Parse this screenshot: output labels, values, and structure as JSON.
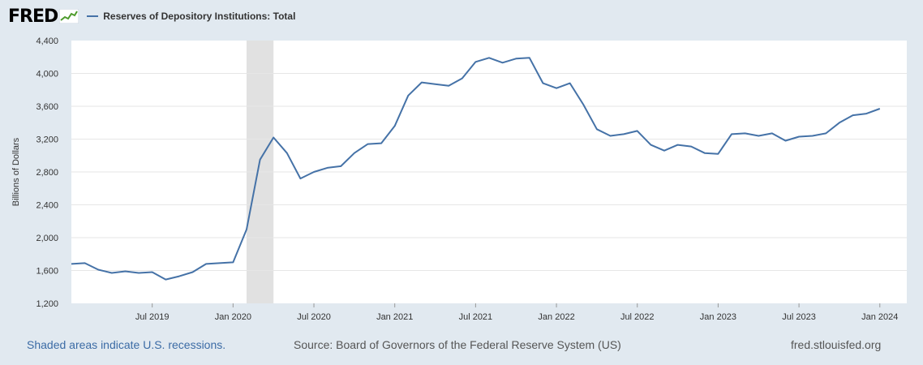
{
  "header": {
    "logo_text": "FRED",
    "legend_label": "Reserves of Depository Institutions: Total",
    "series_color": "#4572a7"
  },
  "footer": {
    "recession_note": "Shaded areas indicate U.S. recessions.",
    "source": "Source: Board of Governors of the Federal Reserve System (US)",
    "site": "fred.stlouisfed.org"
  },
  "chart_data": {
    "type": "line",
    "title": "",
    "ylabel": "Billions of Dollars",
    "xlabel": "",
    "ylim": [
      1200,
      4400
    ],
    "yticks": [
      1200,
      1600,
      2000,
      2400,
      2800,
      3200,
      3600,
      4000,
      4400
    ],
    "ytick_labels": [
      "1,200",
      "1,600",
      "2,000",
      "2,400",
      "2,800",
      "3,200",
      "3,600",
      "4,000",
      "4,400"
    ],
    "xlim": [
      "2019-01",
      "2024-03"
    ],
    "xticks": [
      {
        "date": "2019-07",
        "label": "Jul 2019"
      },
      {
        "date": "2020-01",
        "label": "Jan 2020"
      },
      {
        "date": "2020-07",
        "label": "Jul 2020"
      },
      {
        "date": "2021-01",
        "label": "Jan 2021"
      },
      {
        "date": "2021-07",
        "label": "Jul 2021"
      },
      {
        "date": "2022-01",
        "label": "Jan 2022"
      },
      {
        "date": "2022-07",
        "label": "Jul 2022"
      },
      {
        "date": "2023-01",
        "label": "Jan 2023"
      },
      {
        "date": "2023-07",
        "label": "Jul 2023"
      },
      {
        "date": "2024-01",
        "label": "Jan 2024"
      }
    ],
    "recessions": [
      {
        "start": "2020-02",
        "end": "2020-04"
      }
    ],
    "grid": true,
    "legend_position": "top-left",
    "series": [
      {
        "name": "Reserves of Depository Institutions: Total",
        "color": "#4572a7",
        "points": [
          [
            "2019-01",
            1680
          ],
          [
            "2019-02",
            1690
          ],
          [
            "2019-03",
            1610
          ],
          [
            "2019-04",
            1570
          ],
          [
            "2019-05",
            1590
          ],
          [
            "2019-06",
            1570
          ],
          [
            "2019-07",
            1580
          ],
          [
            "2019-08",
            1490
          ],
          [
            "2019-09",
            1530
          ],
          [
            "2019-10",
            1580
          ],
          [
            "2019-11",
            1680
          ],
          [
            "2019-12",
            1690
          ],
          [
            "2020-01",
            1700
          ],
          [
            "2020-02",
            2100
          ],
          [
            "2020-03",
            2950
          ],
          [
            "2020-04",
            3220
          ],
          [
            "2020-05",
            3030
          ],
          [
            "2020-06",
            2720
          ],
          [
            "2020-07",
            2800
          ],
          [
            "2020-08",
            2850
          ],
          [
            "2020-09",
            2870
          ],
          [
            "2020-10",
            3030
          ],
          [
            "2020-11",
            3140
          ],
          [
            "2020-12",
            3150
          ],
          [
            "2021-01",
            3360
          ],
          [
            "2021-02",
            3730
          ],
          [
            "2021-03",
            3890
          ],
          [
            "2021-04",
            3870
          ],
          [
            "2021-05",
            3850
          ],
          [
            "2021-06",
            3940
          ],
          [
            "2021-07",
            4140
          ],
          [
            "2021-08",
            4190
          ],
          [
            "2021-09",
            4130
          ],
          [
            "2021-10",
            4180
          ],
          [
            "2021-11",
            4190
          ],
          [
            "2021-12",
            3880
          ],
          [
            "2022-01",
            3820
          ],
          [
            "2022-02",
            3880
          ],
          [
            "2022-03",
            3620
          ],
          [
            "2022-04",
            3320
          ],
          [
            "2022-05",
            3240
          ],
          [
            "2022-06",
            3260
          ],
          [
            "2022-07",
            3300
          ],
          [
            "2022-08",
            3130
          ],
          [
            "2022-09",
            3060
          ],
          [
            "2022-10",
            3130
          ],
          [
            "2022-11",
            3110
          ],
          [
            "2022-12",
            3030
          ],
          [
            "2023-01",
            3020
          ],
          [
            "2023-02",
            3260
          ],
          [
            "2023-03",
            3270
          ],
          [
            "2023-04",
            3240
          ],
          [
            "2023-05",
            3270
          ],
          [
            "2023-06",
            3180
          ],
          [
            "2023-07",
            3230
          ],
          [
            "2023-08",
            3240
          ],
          [
            "2023-09",
            3270
          ],
          [
            "2023-10",
            3400
          ],
          [
            "2023-11",
            3490
          ],
          [
            "2023-12",
            3510
          ],
          [
            "2024-01",
            3570
          ]
        ]
      }
    ]
  }
}
